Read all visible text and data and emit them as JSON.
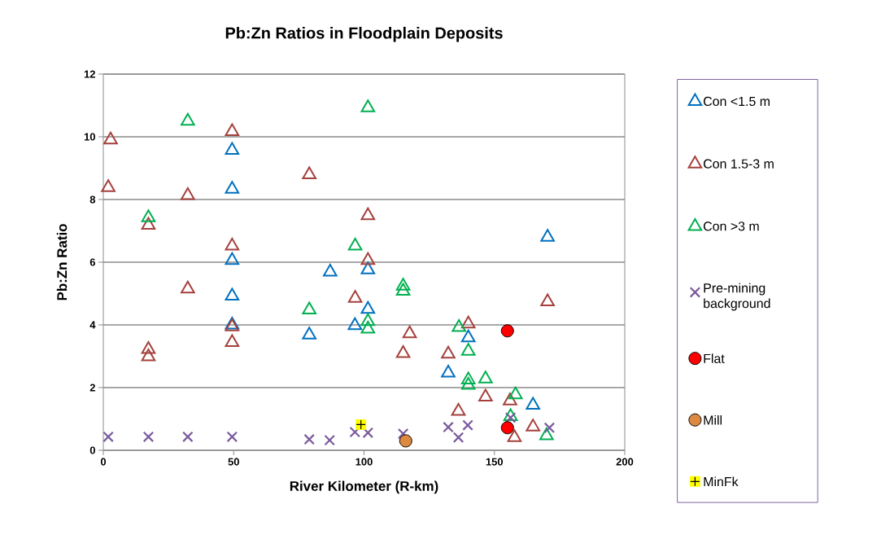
{
  "chart_data": {
    "type": "scatter",
    "title": "Pb:Zn Ratios in Floodplain Deposits",
    "xlabel": "River Kilometer (R-km)",
    "ylabel": "Pb:Zn Ratio",
    "xlim": [
      0,
      200
    ],
    "xticks": [
      0,
      50,
      100,
      150,
      200
    ],
    "ylim": [
      0,
      12
    ],
    "yticks": [
      0,
      2,
      4,
      6,
      8,
      10,
      12
    ],
    "grid": "y",
    "legend": "right",
    "series": [
      {
        "name": "Con <1.5 m",
        "color": "#0070c0",
        "marker": "triangle",
        "x": [
          49.4,
          49.4,
          49.4,
          49.4,
          49.4,
          79,
          87,
          96.5,
          101.5,
          101.5,
          132.3,
          140,
          164.8,
          170.4
        ],
        "values": [
          9.57,
          8.33,
          6.06,
          4.92,
          4.0,
          3.68,
          5.69,
          3.98,
          5.76,
          4.5,
          2.47,
          3.59,
          1.44,
          6.8
        ]
      },
      {
        "name": "Con 1.5-3 m",
        "color": "#a5403c",
        "marker": "triangle",
        "x": [
          2.8,
          1.9,
          49.4,
          32.4,
          17.3,
          49.4,
          32.4,
          49.4,
          49.4,
          17.3,
          17.3,
          79,
          101.5,
          101.5,
          96.6,
          117.5,
          115,
          132.3,
          140,
          136.2,
          146.6,
          156,
          157.7,
          164.8,
          170.4
        ],
        "values": [
          9.9,
          8.38,
          10.17,
          8.13,
          7.18,
          6.52,
          5.15,
          3.94,
          3.44,
          3.22,
          2.99,
          8.79,
          7.49,
          6.06,
          4.85,
          3.72,
          3.09,
          3.07,
          4.03,
          1.25,
          1.7,
          1.58,
          0.41,
          0.75,
          4.74
        ]
      },
      {
        "name": "Con >3 m",
        "color": "#00b050",
        "marker": "triangle",
        "x": [
          32.4,
          17.3,
          101.5,
          96.6,
          115,
          115,
          79,
          101.5,
          101.5,
          136.4,
          140,
          140,
          140,
          146.6,
          158.1,
          156.2,
          170
        ],
        "values": [
          10.5,
          7.42,
          10.93,
          6.52,
          5.24,
          5.08,
          4.48,
          4.11,
          3.87,
          3.92,
          3.16,
          2.25,
          2.08,
          2.28,
          1.77,
          1.08,
          0.47
        ]
      },
      {
        "name": "Pre-mining background",
        "color": "#7a5a9c",
        "marker": "cross",
        "x": [
          1.9,
          17.3,
          32.4,
          49.4,
          79,
          86.8,
          96.5,
          101.5,
          115,
          132.3,
          136.2,
          139.8,
          156.2,
          171.1
        ],
        "values": [
          0.43,
          0.43,
          0.43,
          0.43,
          0.35,
          0.32,
          0.58,
          0.56,
          0.53,
          0.74,
          0.41,
          0.8,
          1.04,
          0.72
        ]
      },
      {
        "name": "Flat",
        "color": "#ff0000",
        "marker": "circle",
        "x": [
          155,
          155
        ],
        "values": [
          3.81,
          0.72
        ]
      },
      {
        "name": "Mill",
        "color": "#dd8a40",
        "marker": "circle",
        "x": [
          116
        ],
        "values": [
          0.3
        ]
      },
      {
        "name": "MinFk",
        "color": "#ffff00",
        "marker": "square",
        "x": [
          98.8
        ],
        "values": [
          0.82
        ]
      }
    ]
  }
}
